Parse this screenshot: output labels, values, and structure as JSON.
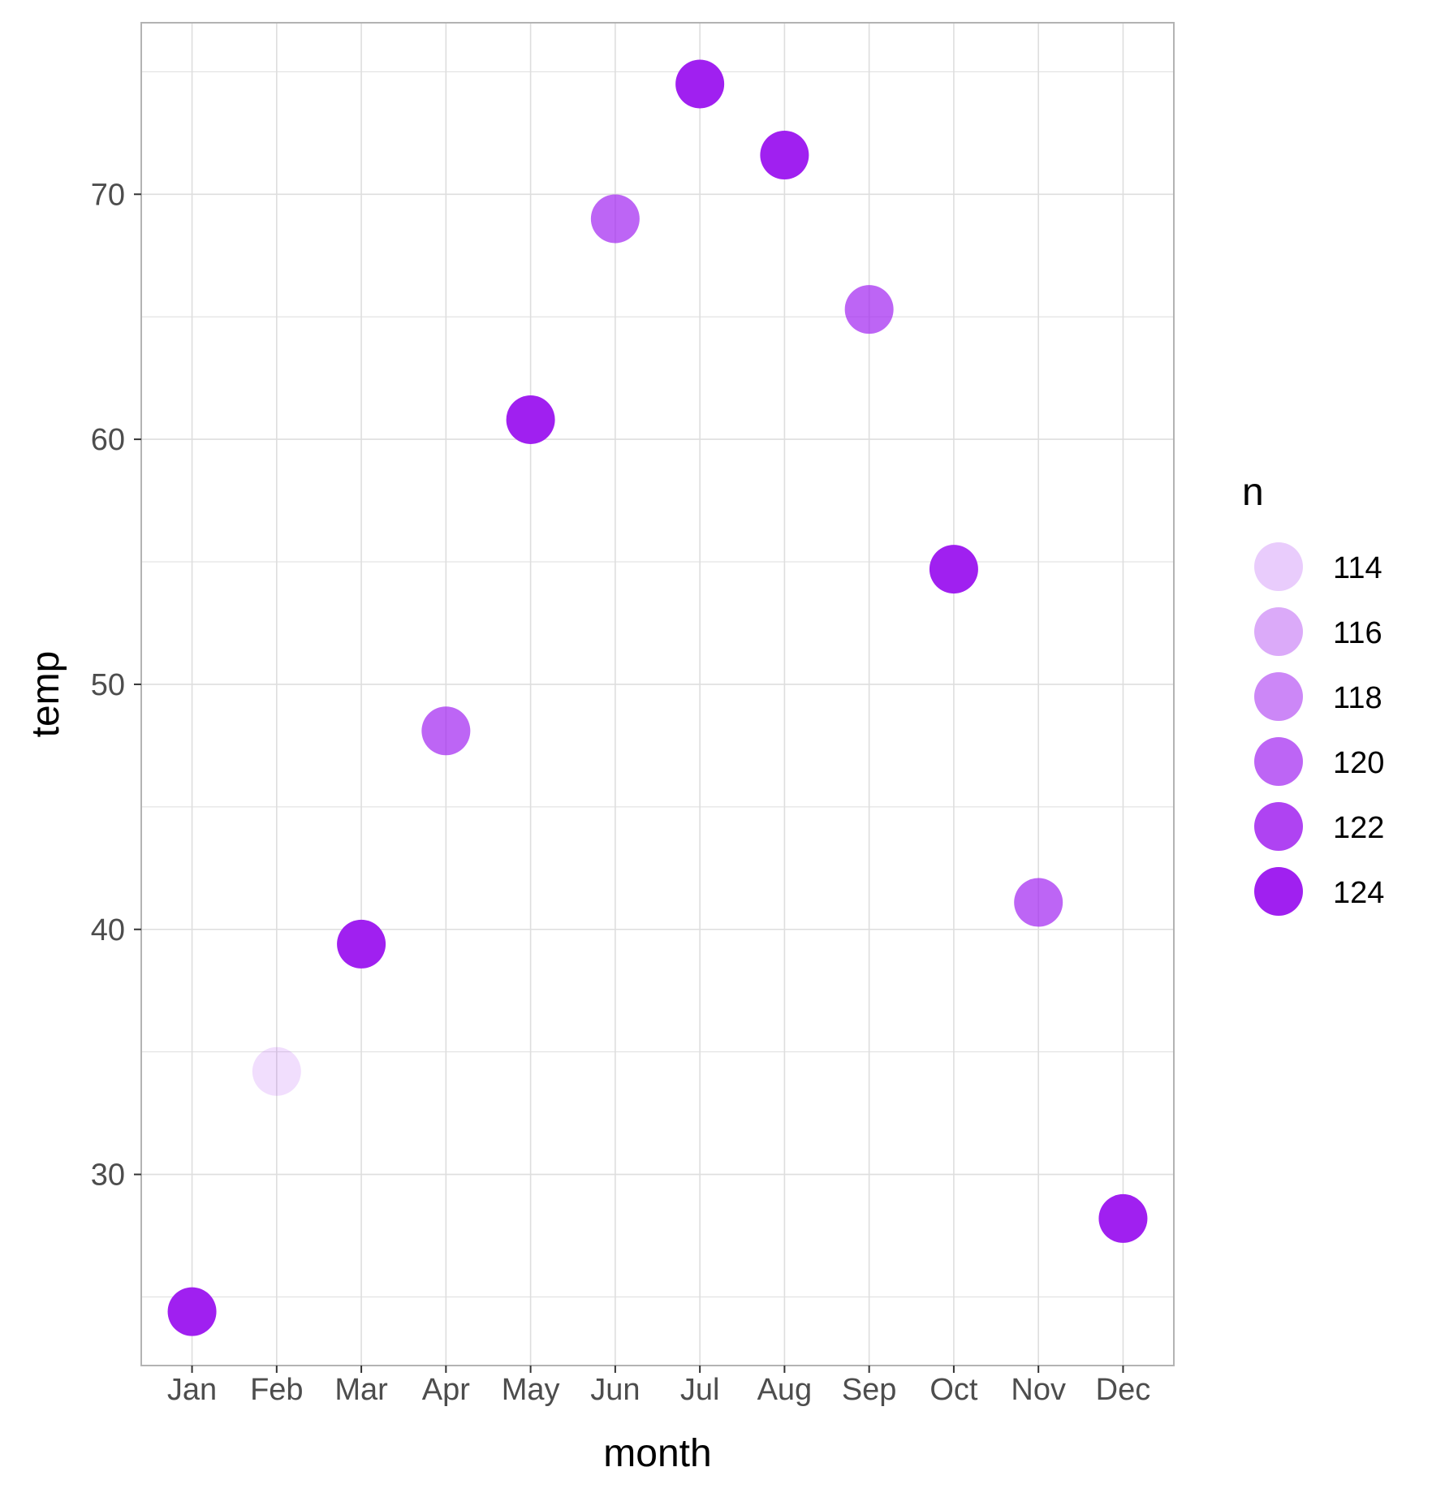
{
  "chart_data": {
    "type": "scatter",
    "xlabel": "month",
    "ylabel": "temp",
    "categories": [
      "Jan",
      "Feb",
      "Mar",
      "Apr",
      "May",
      "Jun",
      "Jul",
      "Aug",
      "Sep",
      "Oct",
      "Nov",
      "Dec"
    ],
    "points": [
      {
        "month": "Jan",
        "temp": 24.4,
        "n": 124
      },
      {
        "month": "Feb",
        "temp": 34.2,
        "n": 113
      },
      {
        "month": "Mar",
        "temp": 39.4,
        "n": 124
      },
      {
        "month": "Apr",
        "temp": 48.1,
        "n": 120
      },
      {
        "month": "May",
        "temp": 60.8,
        "n": 124
      },
      {
        "month": "Jun",
        "temp": 69.0,
        "n": 120
      },
      {
        "month": "Jul",
        "temp": 74.5,
        "n": 124
      },
      {
        "month": "Aug",
        "temp": 71.6,
        "n": 124
      },
      {
        "month": "Sep",
        "temp": 65.3,
        "n": 120
      },
      {
        "month": "Oct",
        "temp": 54.7,
        "n": 124
      },
      {
        "month": "Nov",
        "temp": 41.1,
        "n": 120
      },
      {
        "month": "Dec",
        "temp": 28.2,
        "n": 124
      }
    ],
    "y_ticks": [
      30,
      40,
      50,
      60,
      70
    ],
    "ylim": [
      22.2,
      77.0
    ],
    "grid": true,
    "legend": {
      "title": "n",
      "placement": "right",
      "entries": [
        {
          "label": "114",
          "value": 114
        },
        {
          "label": "116",
          "value": 116
        },
        {
          "label": "118",
          "value": 118
        },
        {
          "label": "120",
          "value": 120
        },
        {
          "label": "122",
          "value": 122
        },
        {
          "label": "124",
          "value": 124
        }
      ],
      "n_range": [
        113,
        124
      ]
    },
    "colors": {
      "point": "#A020F0",
      "grid": "#dedede",
      "panel_border": "#b3b3b3",
      "tick_text": "#4d4d4d"
    }
  }
}
